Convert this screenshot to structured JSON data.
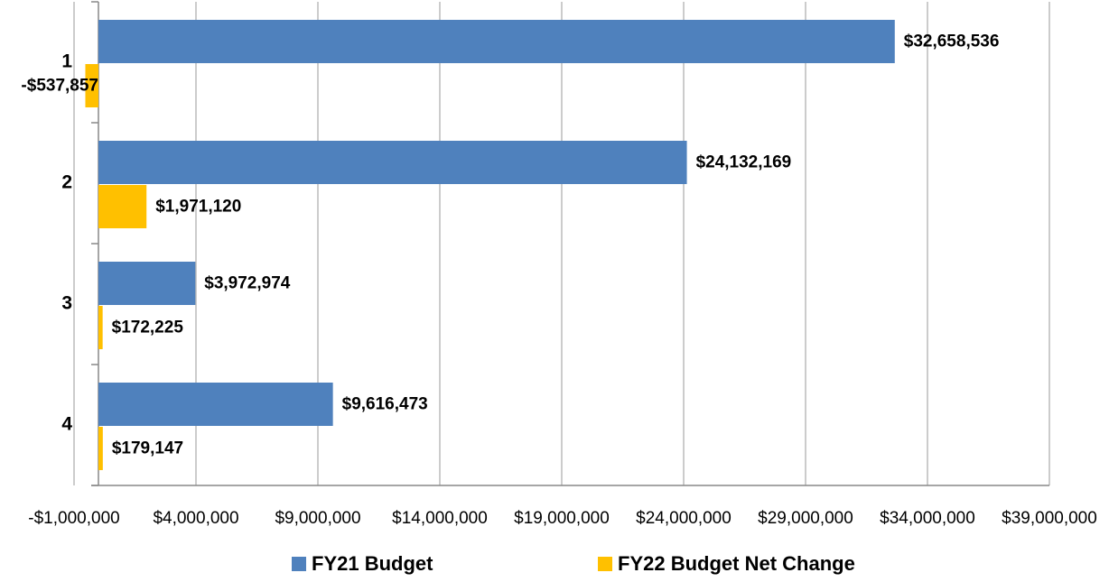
{
  "chart_data": {
    "type": "bar",
    "orientation": "horizontal",
    "categories": [
      "1",
      "2",
      "3",
      "4"
    ],
    "series": [
      {
        "name": "FY21 Budget",
        "color": "#4f81bd",
        "values": [
          32658536,
          24132169,
          3972974,
          9616473
        ],
        "value_labels": [
          "$32,658,536",
          "$24,132,169",
          "$3,972,974",
          "$9,616,473"
        ]
      },
      {
        "name": "FY22 Budget Net Change",
        "color": "#ffc000",
        "values": [
          -537857,
          1971120,
          172225,
          179147
        ],
        "value_labels": [
          "-$537,857",
          "$1,971,120",
          "$172,225",
          "$179,147"
        ]
      }
    ],
    "xlim": [
      -1000000,
      39000000
    ],
    "xticks": [
      {
        "value": -1000000,
        "label": "-$1,000,000"
      },
      {
        "value": 4000000,
        "label": "$4,000,000"
      },
      {
        "value": 9000000,
        "label": "$9,000,000"
      },
      {
        "value": 14000000,
        "label": "$14,000,000"
      },
      {
        "value": 19000000,
        "label": "$19,000,000"
      },
      {
        "value": 24000000,
        "label": "$24,000,000"
      },
      {
        "value": 29000000,
        "label": "$29,000,000"
      },
      {
        "value": 34000000,
        "label": "$34,000,000"
      },
      {
        "value": 39000000,
        "label": "$39,000,000"
      }
    ],
    "grid": true,
    "legend": "bottom"
  }
}
